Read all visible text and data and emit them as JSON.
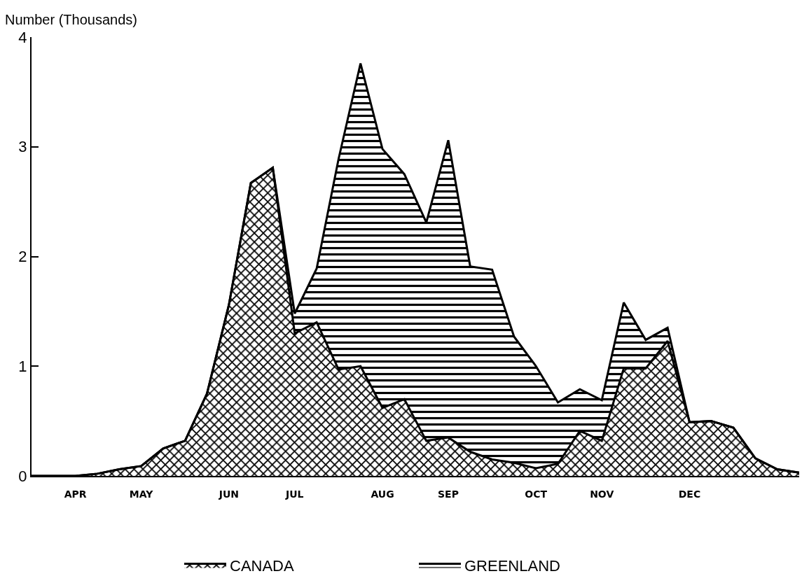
{
  "chart_data": {
    "type": "area",
    "stacked": true,
    "ylabel": "Number (Thousands)",
    "categories": [
      null,
      null,
      "APR",
      null,
      null,
      "MAY",
      null,
      null,
      null,
      "JUN",
      null,
      null,
      "JUL",
      null,
      null,
      null,
      "AUG",
      null,
      null,
      "SEP",
      null,
      null,
      null,
      "OCT",
      null,
      null,
      "NOV",
      null,
      null,
      null,
      "DEC",
      null,
      null,
      null,
      null,
      null
    ],
    "series": [
      {
        "name": "CANADA",
        "color": "#000000",
        "values": [
          0,
          0,
          0,
          0.02,
          0.06,
          0.09,
          0.25,
          0.32,
          0.75,
          1.56,
          2.67,
          2.81,
          1.3,
          1.4,
          0.97,
          1.0,
          0.62,
          0.7,
          0.32,
          0.35,
          0.22,
          0.15,
          0.12,
          0.07,
          0.11,
          0.41,
          0.32,
          0.98,
          0.98,
          1.23,
          0.49,
          0.5,
          0.44,
          0.16,
          0.06,
          0.03
        ]
      },
      {
        "name": "GREENLAND",
        "color": "#000000",
        "values": [
          0,
          0,
          0,
          0,
          0,
          0,
          0,
          0,
          0,
          0,
          0,
          0,
          0.18,
          0.49,
          1.92,
          2.76,
          2.36,
          2.05,
          1.99,
          2.71,
          1.69,
          1.73,
          1.15,
          0.93,
          0.56,
          0.38,
          0.37,
          0.6,
          0.26,
          0.12,
          0,
          0,
          0,
          0,
          0,
          0
        ]
      }
    ],
    "ylim": [
      0,
      4
    ],
    "yticks": [
      0,
      1,
      2,
      3,
      4
    ],
    "grid": false,
    "legend": "bottom",
    "marker": "none",
    "line_style": "solid"
  }
}
